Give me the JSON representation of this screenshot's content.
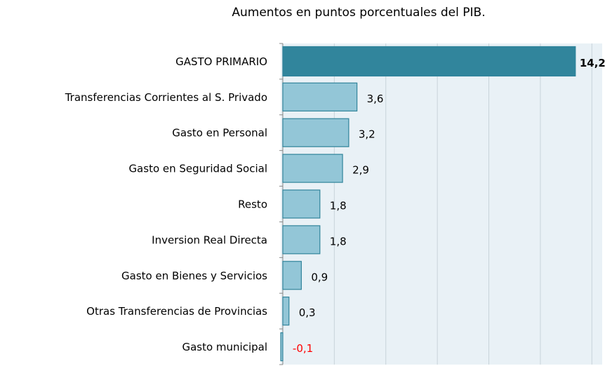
{
  "chart_data": {
    "type": "barh",
    "title": "Aumentos en puntos porcentuales del PIB.",
    "categories": [
      "GASTO PRIMARIO",
      "Transferencias Corrientes al S. Privado",
      "Gasto en Personal",
      "Gasto en Seguridad Social",
      "Resto",
      "Inversion Real Directa",
      "Gasto en Bienes y Servicios",
      "Otras Transferencias de Provincias",
      "Gasto municipal"
    ],
    "values": [
      14.2,
      3.6,
      3.2,
      2.9,
      1.8,
      1.8,
      0.9,
      0.3,
      -0.1
    ],
    "value_labels": [
      "14,2",
      "3,6",
      "3,2",
      "2,9",
      "1,8",
      "1,8",
      "0,9",
      "0,3",
      "-0,1"
    ],
    "colors": [
      "#31859c",
      "#93c6d7",
      "#93c6d7",
      "#93c6d7",
      "#93c6d7",
      "#93c6d7",
      "#93c6d7",
      "#93c6d7",
      "#93c6d7"
    ],
    "negative_label_color": "#ff0000",
    "xlim": [
      -0.1,
      15.5
    ],
    "xticks": [
      0,
      2.5,
      5,
      7.5,
      10,
      12.5,
      15
    ],
    "grid": true
  }
}
